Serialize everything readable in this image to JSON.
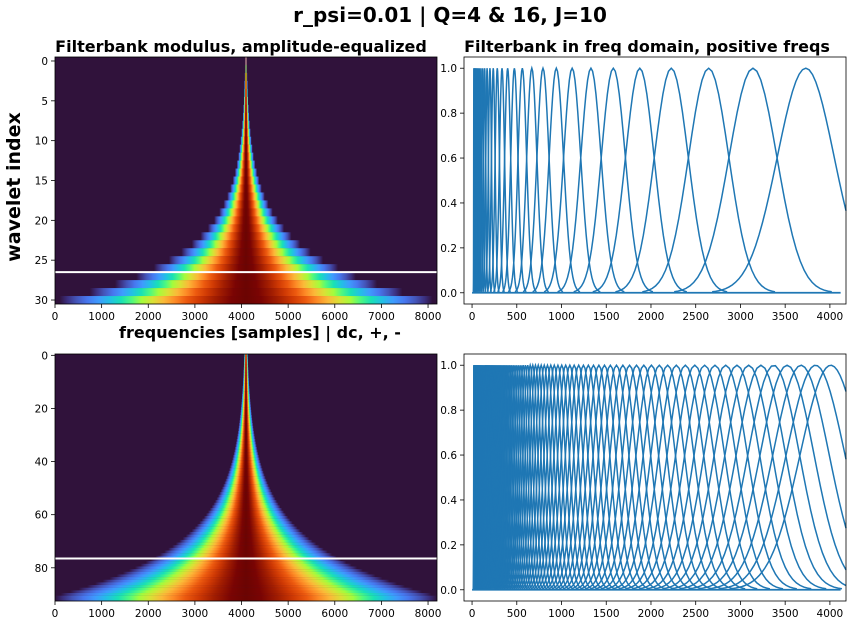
{
  "figure": {
    "suptitle": "r_psi=0.01 | Q=4 & 16, J=10",
    "ylabel": "wavelet index",
    "xlabel": "frequencies [samples] | dc, +, -"
  },
  "colors": {
    "line": "#1f77b4",
    "separator": "#ffffff",
    "background_low": "#30123b"
  },
  "chart_data": [
    {
      "id": "heat_q4",
      "type": "heatmap",
      "title": "Filterbank modulus, amplitude-equalized",
      "xlabel": "frequencies [samples] | dc, +, -",
      "ylabel": "wavelet index",
      "colormap": "turbo",
      "xlim": [
        0,
        8192
      ],
      "ylim": [
        30.5,
        -0.5
      ],
      "n_rows": 31,
      "center": 4096,
      "width_at_row0": 20,
      "width_at_last_row": 4000,
      "separator_row": 26.5,
      "x_ticks": [
        0,
        1000,
        2000,
        3000,
        4000,
        5000,
        6000,
        7000,
        8000
      ],
      "y_ticks": [
        0,
        5,
        10,
        15,
        20,
        25,
        30
      ]
    },
    {
      "id": "freq_q4",
      "type": "line",
      "title": "Filterbank in freq domain, positive freqs",
      "xlim": [
        -90,
        4180
      ],
      "ylim": [
        -0.05,
        1.05
      ],
      "peak_value": 1.0,
      "peak_centers": [
        3730,
        3140,
        2645,
        2227,
        1875,
        1579,
        1329,
        1119,
        942,
        793,
        668,
        562,
        473,
        398,
        335,
        282,
        237,
        200,
        168,
        141,
        119,
        100,
        84,
        71,
        60,
        50,
        42,
        35,
        29,
        24,
        20
      ],
      "x_ticks": [
        0,
        500,
        1000,
        1500,
        2000,
        2500,
        3000,
        3500,
        4000
      ],
      "y_ticks": [
        0.0,
        0.2,
        0.4,
        0.6,
        0.8,
        1.0
      ]
    },
    {
      "id": "heat_q16",
      "type": "heatmap",
      "title": "",
      "colormap": "turbo",
      "xlim": [
        0,
        8192
      ],
      "ylim": [
        92.5,
        -0.5
      ],
      "n_rows": 93,
      "center": 4096,
      "width_at_row0": 40,
      "width_at_last_row": 4400,
      "separator_row": 76.5,
      "x_ticks": [
        0,
        1000,
        2000,
        3000,
        4000,
        5000,
        6000,
        7000,
        8000
      ],
      "y_ticks": [
        0,
        20,
        40,
        60,
        80
      ]
    },
    {
      "id": "freq_q16",
      "type": "line",
      "title": "",
      "xlim": [
        -90,
        4180
      ],
      "ylim": [
        -0.05,
        1.05
      ],
      "peak_value": 1.0,
      "peak_first": 4010,
      "peak_ratio": 0.9576,
      "peak_last": 20,
      "x_ticks": [
        0,
        500,
        1000,
        1500,
        2000,
        2500,
        3000,
        3500,
        4000
      ],
      "y_ticks": [
        0.0,
        0.2,
        0.4,
        0.6,
        0.8,
        1.0
      ]
    }
  ]
}
